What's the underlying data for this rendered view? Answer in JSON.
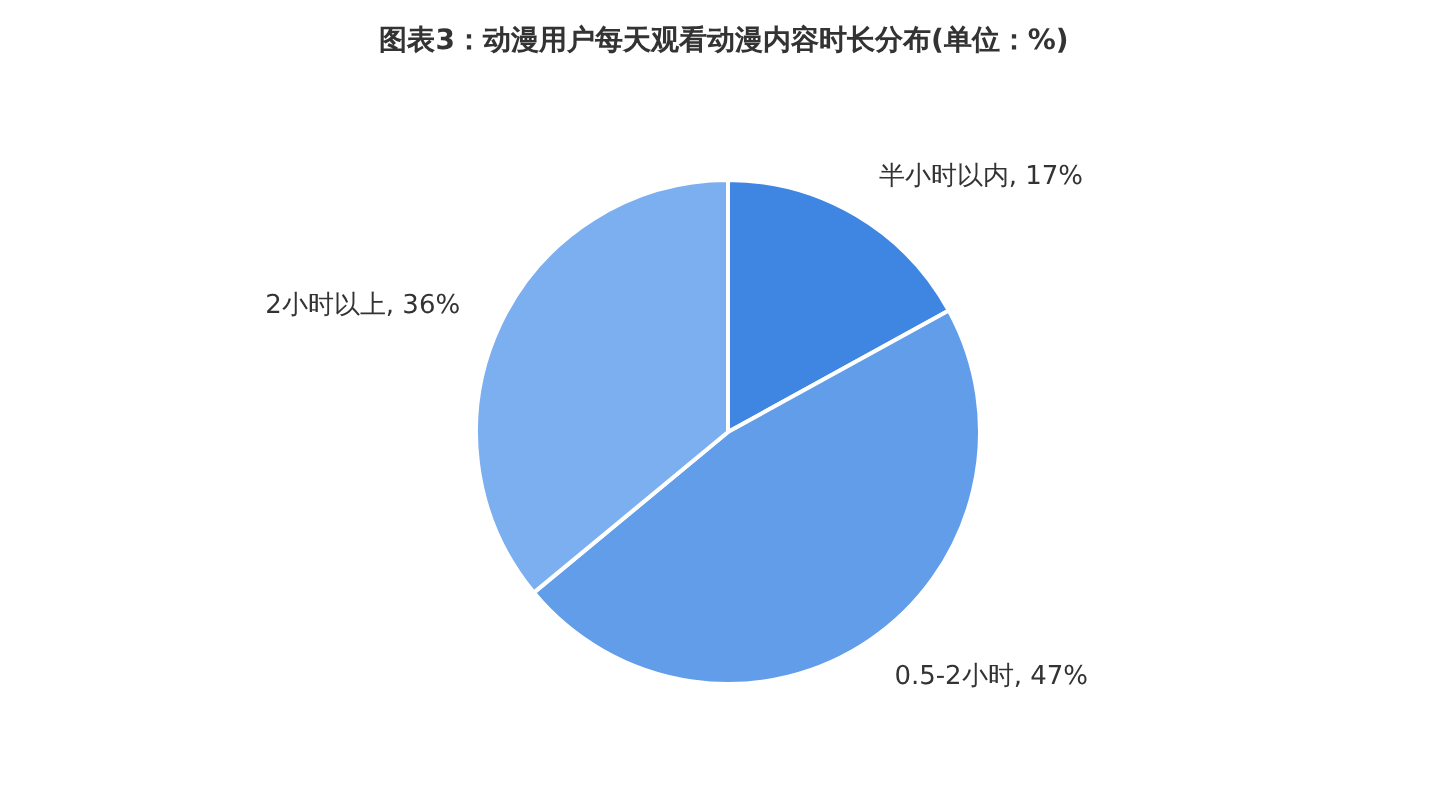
{
  "chart_data": {
    "type": "pie",
    "title": "图表3：动漫用户每天观看动漫内容时长分布(单位：%)",
    "categories": [
      "半小时以内",
      "0.5-2小时",
      "2小时以上"
    ],
    "values": [
      17,
      47,
      36
    ],
    "colors": [
      "#3f86e2",
      "#619de9",
      "#7cafef"
    ],
    "value_labels": [
      "17%",
      "47%",
      "36%"
    ],
    "legend": false
  }
}
